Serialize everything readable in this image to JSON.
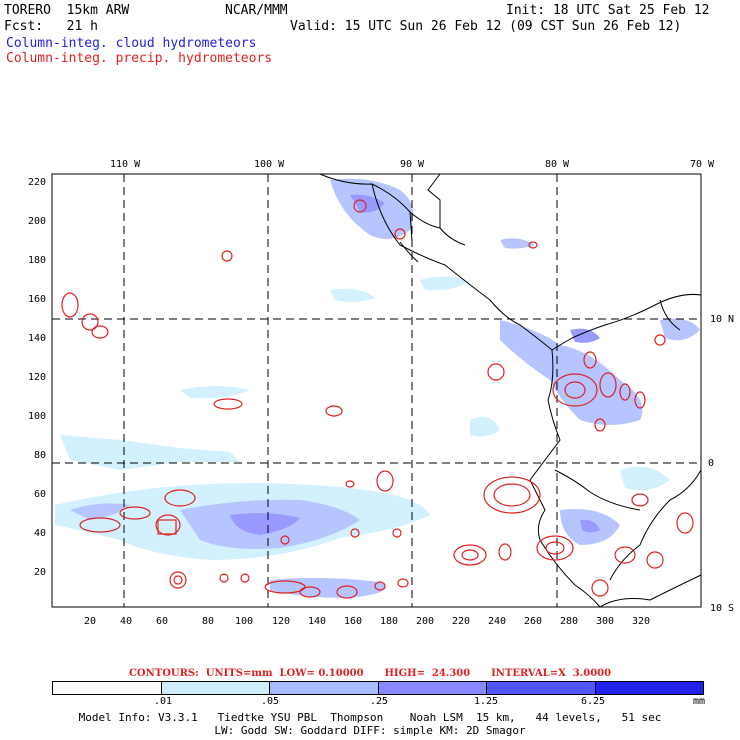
{
  "header": {
    "model": "TORERO  15km ARW",
    "center": "NCAR/MMM",
    "init": "Init: 18 UTC Sat 25 Feb 12",
    "fcst": "Fcst:   21 h",
    "valid": "Valid: 15 UTC Sun 26 Feb 12 (09 CST Sun 26 Feb 12)",
    "line_cloud": "Column-integ. cloud hydrometeors",
    "line_precip": "Column-integ. precip. hydrometeors"
  },
  "axes": {
    "top_lon": [
      "110 W",
      "100 W",
      "90 W",
      "80 W",
      "70 W"
    ],
    "right_lat": [
      "10 N",
      "0",
      "10 S"
    ],
    "left_y": [
      "220",
      "200",
      "180",
      "160",
      "140",
      "120",
      "100",
      "80",
      "60",
      "40",
      "20"
    ],
    "bottom_x": [
      "20",
      "40",
      "60",
      "80",
      "100",
      "120",
      "140",
      "160",
      "180",
      "200",
      "220",
      "240",
      "260",
      "280",
      "300",
      "320"
    ]
  },
  "contours": {
    "text": "CONTOURS:  UNITS=mm  LOW= 0.10000      HIGH=  24.300      INTERVAL=X  3.0000"
  },
  "colorbar": {
    "ticks": [
      ".01",
      ".05",
      ".25",
      "1.25",
      "6.25"
    ],
    "units": "mm",
    "colors": [
      "#ffffff",
      "#cceeff",
      "#aabbff",
      "#8888ff",
      "#5555ff",
      "#2222ee"
    ]
  },
  "footer": {
    "line1": "Model Info: V3.3.1   Tiedtke YSU PBL  Thompson    Noah LSM  15 km,   44 levels,   51 sec",
    "line2": "LW: Godd SW: Goddard DIFF: simple KM: 2D Smagor"
  },
  "colors": {
    "cloud": "#8899ff",
    "precip": "#dd2222"
  }
}
